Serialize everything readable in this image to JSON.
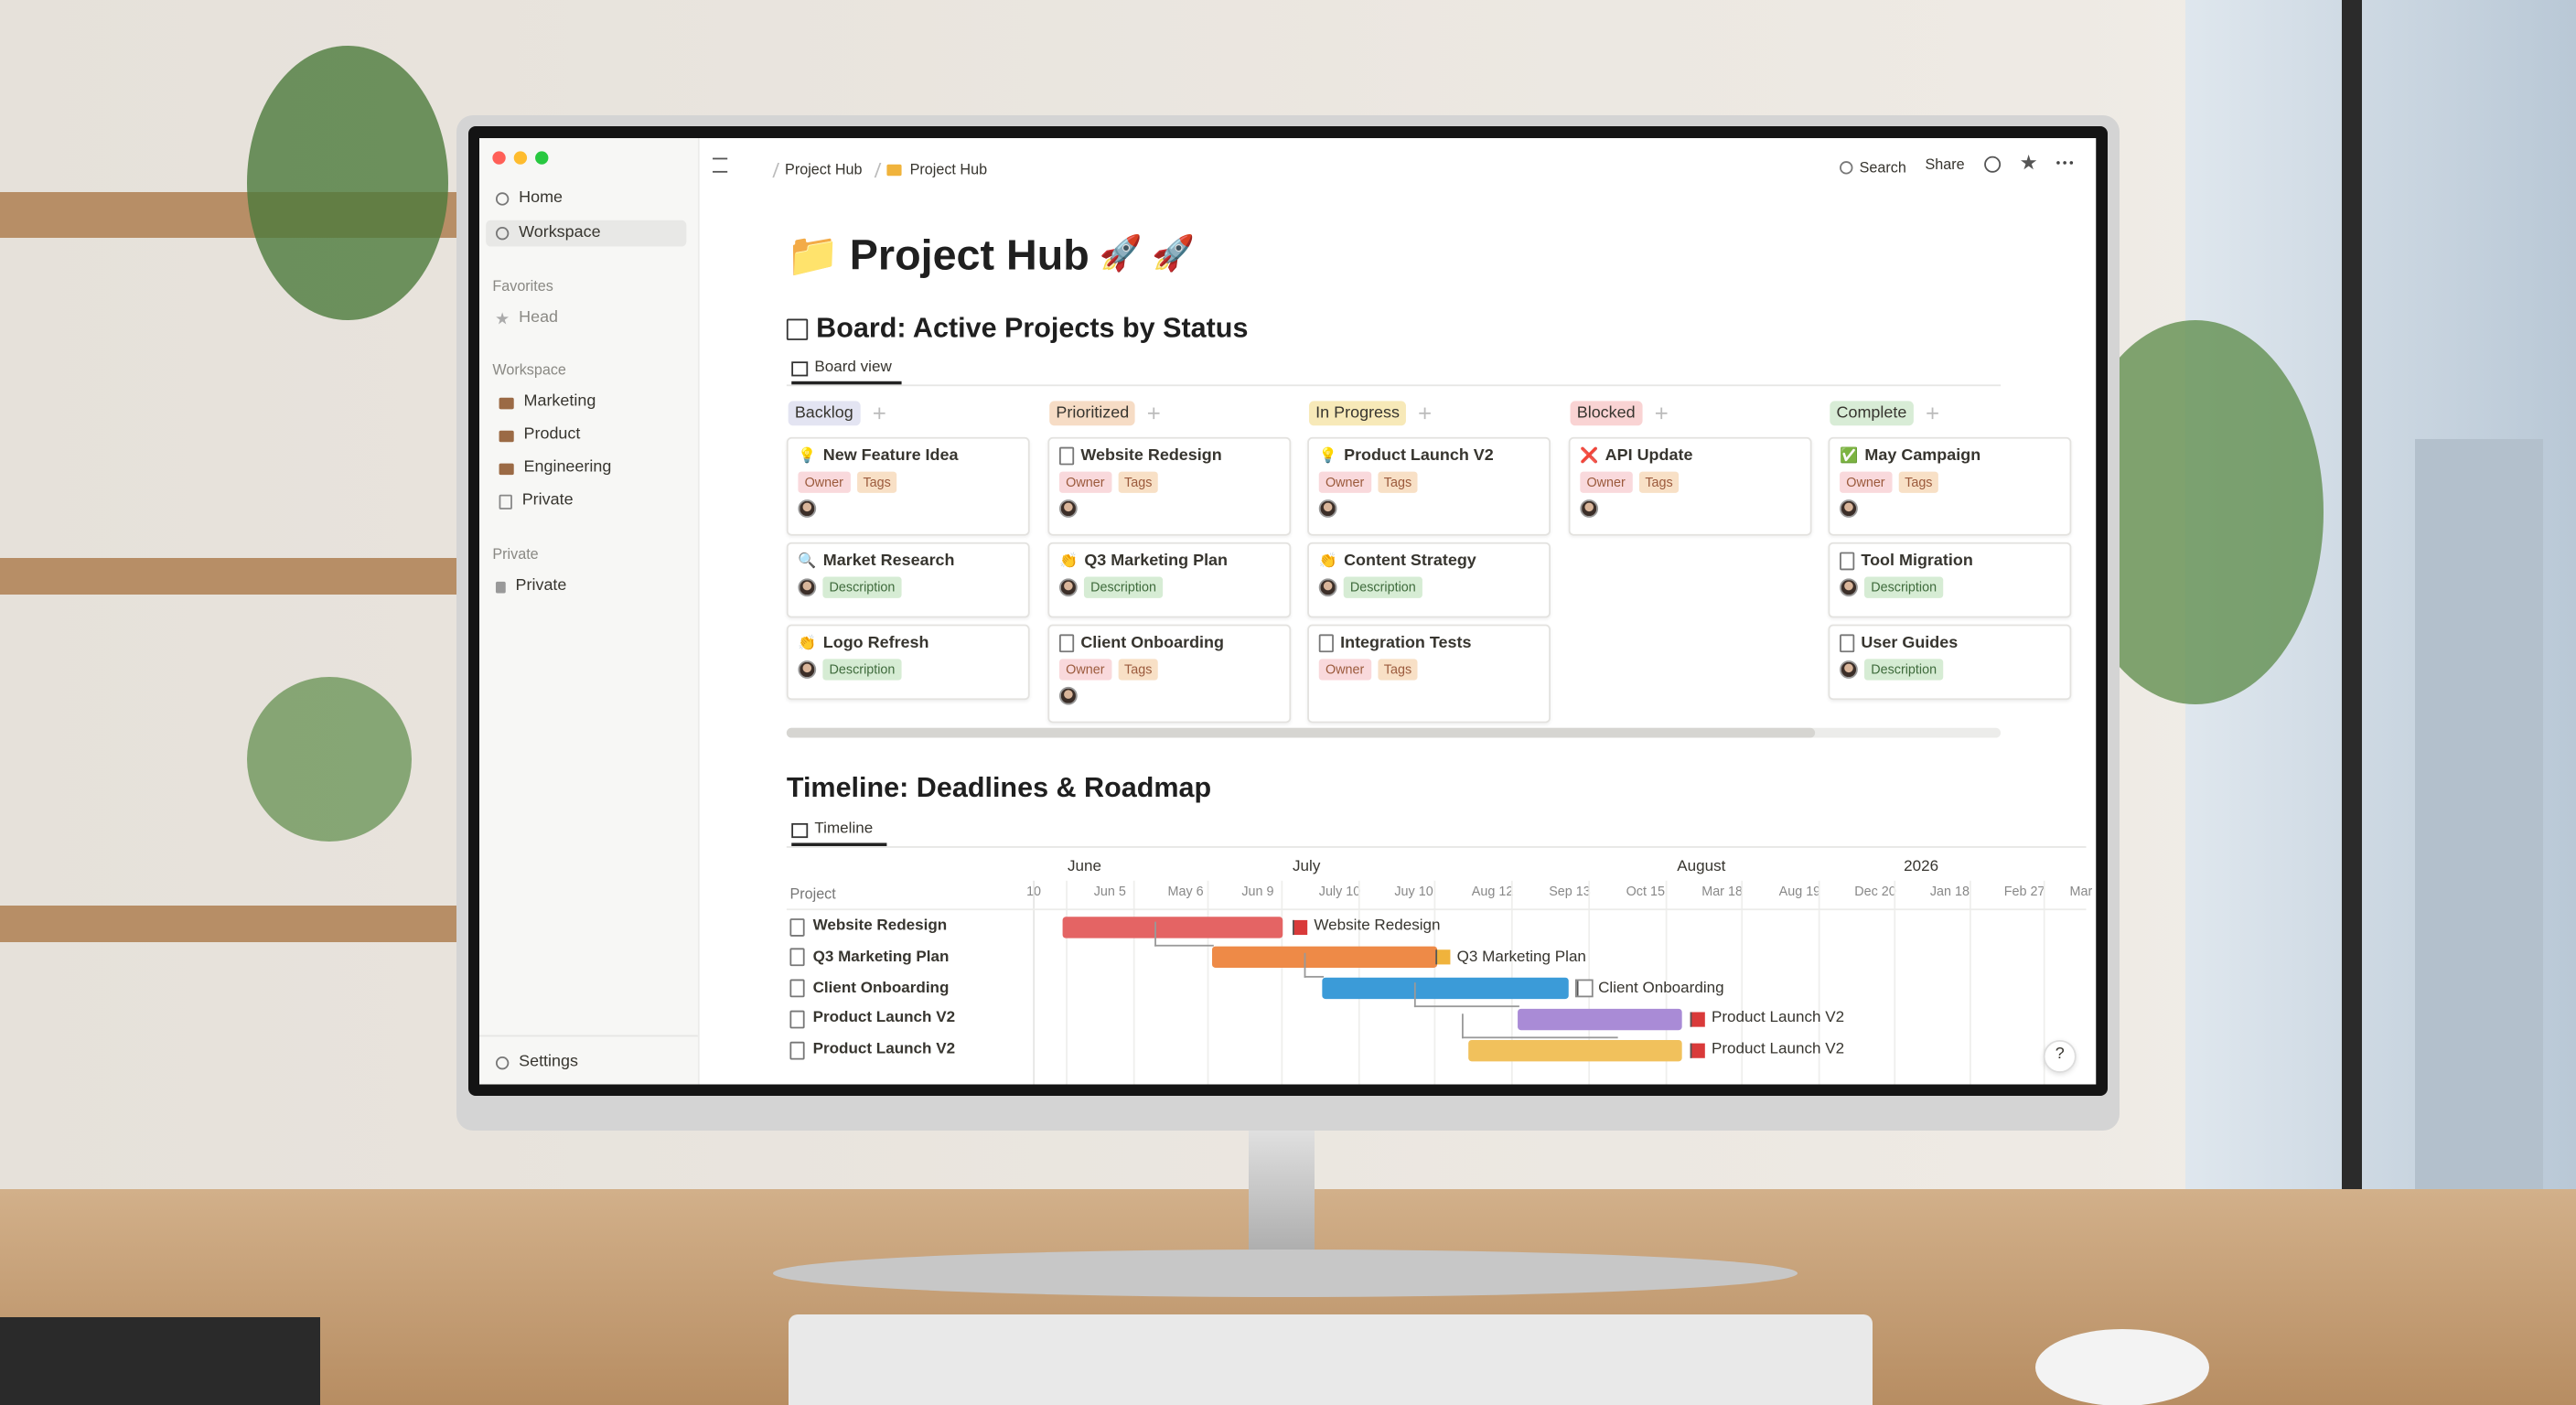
{
  "window": {
    "breadcrumbs": [
      "Project Hub",
      "Project Hub"
    ],
    "search": "Search",
    "share": "Share"
  },
  "sidebar": {
    "top": [
      "Home",
      "Workspace"
    ],
    "favorites_label": "Favorites",
    "favorites": [
      "Head"
    ],
    "workspace_label": "Workspace",
    "workspace": [
      "Marketing",
      "Product",
      "Engineering",
      "Private"
    ],
    "private_label": "Private",
    "private": [
      "Private"
    ],
    "settings": "Settings"
  },
  "page": {
    "icon": "📁",
    "title": "Project Hub",
    "suffix": "🚀 🚀"
  },
  "board": {
    "title": "Board: Active Projects by Status",
    "view": "Board view",
    "columns": [
      {
        "name": "Backlog",
        "cards": [
          {
            "icon": "💡",
            "title": "New Feature Idea",
            "tags": [
              "Owner",
              "Tags"
            ]
          },
          {
            "icon": "🔍",
            "title": "Market Research",
            "tags": [
              "Description"
            ]
          },
          {
            "icon": "👏",
            "title": "Logo Refresh",
            "tags": [
              "Description"
            ]
          }
        ]
      },
      {
        "name": "Prioritized",
        "cards": [
          {
            "title": "Website Redesign",
            "tags": [
              "Owner",
              "Tags"
            ]
          },
          {
            "icon": "👏",
            "title": "Q3 Marketing Plan",
            "tags": [
              "Description"
            ]
          },
          {
            "title": "Client Onboarding",
            "tags": [
              "Owner",
              "Tags"
            ]
          }
        ]
      },
      {
        "name": "In Progress",
        "cards": [
          {
            "icon": "💡",
            "title": "Product Launch V2",
            "tags": [
              "Owner",
              "Tags"
            ]
          },
          {
            "icon": "👏",
            "title": "Content Strategy",
            "tags": [
              "Description"
            ]
          },
          {
            "title": "Integration Tests",
            "tags": [
              "Owner",
              "Tags"
            ]
          }
        ]
      },
      {
        "name": "Blocked",
        "cards": [
          {
            "icon": "❌",
            "title": "API Update",
            "tags": [
              "Owner",
              "Tags"
            ]
          }
        ]
      },
      {
        "name": "Complete",
        "cards": [
          {
            "icon": "✅",
            "title": "May Campaign",
            "tags": [
              "Owner",
              "Tags"
            ]
          },
          {
            "title": "Tool Migration",
            "tags": [
              "Description"
            ]
          },
          {
            "title": "User Guides",
            "tags": [
              "Description"
            ]
          }
        ]
      }
    ]
  },
  "timeline": {
    "title": "Timeline: Deadlines & Roadmap",
    "view": "Timeline",
    "column_header": "Project",
    "months": [
      "June",
      "July",
      "August",
      "2026"
    ],
    "dates": [
      "10",
      "Jun 5",
      "May 6",
      "Jun 9",
      "July 10",
      "Juy 10",
      "Aug 12",
      "Sep 13",
      "Oct 15",
      "Mar 18",
      "Aug 19",
      "Dec 20",
      "Jan 18",
      "Feb 27",
      "Mar"
    ],
    "rows": [
      {
        "name": "Website Redesign",
        "label": "Website Redesign",
        "color": "#e46464"
      },
      {
        "name": "Q3 Marketing Plan",
        "label": "Q3 Marketing Plan",
        "color": "#ee8a47"
      },
      {
        "name": "Client Onboarding",
        "label": "Client Onboarding",
        "color": "#3b9bd8"
      },
      {
        "name": "Product Launch V2",
        "label": "Product Launch V2",
        "color": "#a98bd6"
      },
      {
        "name": "Product Launch V2",
        "label": "Product Launch V2",
        "color": "#f1c15c"
      }
    ]
  },
  "help": "?"
}
